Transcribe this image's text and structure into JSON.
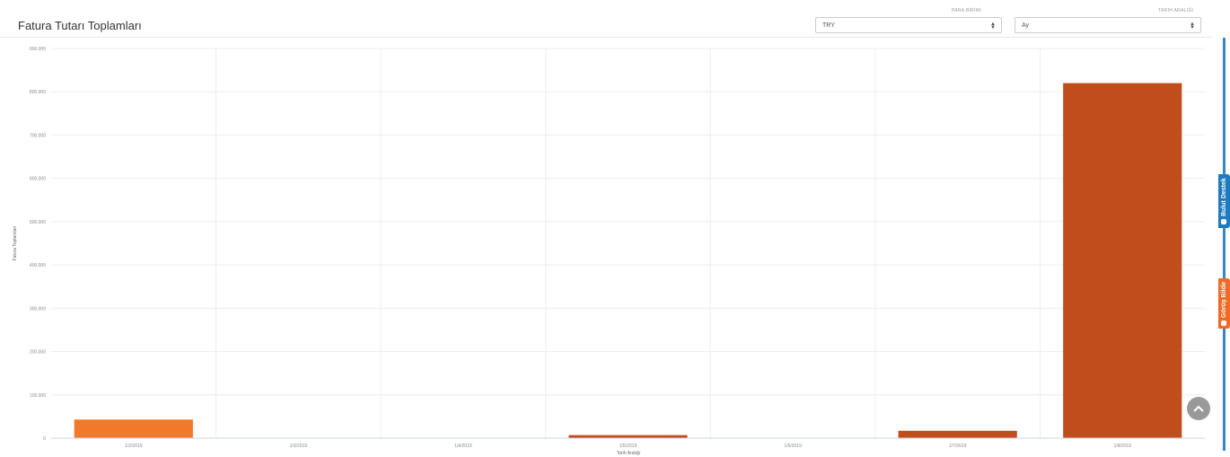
{
  "header": {
    "title": "Fatura Tutarı Toplamları",
    "currency_label": "PARA BİRİMİ",
    "currency_value": "TRY",
    "range_label": "TARİH ARALIĞI",
    "range_value": "Ay"
  },
  "side_tabs": {
    "support": "Bulut Destek",
    "feedback": "Görüş Bildir"
  },
  "chart_data": {
    "type": "bar",
    "categories": [
      "1/2/2019",
      "1/3/2019",
      "1/4/2019",
      "1/5/2019",
      "1/6/2019",
      "1/7/2019",
      "1/8/2019"
    ],
    "values": [
      43000,
      0,
      0,
      7000,
      0,
      17000,
      820000
    ],
    "colors": [
      "#f07a2a",
      "#c24d1c",
      "#c24d1c",
      "#c24d1c",
      "#c24d1c",
      "#c24d1c",
      "#c24d1c"
    ],
    "title": "",
    "xlabel": "Tarih Aralığı",
    "ylabel": "Fatura Toplamları",
    "ylim": [
      0,
      900000
    ],
    "yticks": [
      "0",
      "100.000",
      "200.000",
      "300.000",
      "400.000",
      "500.000",
      "600.000",
      "700.000",
      "800.000",
      "900.000"
    ],
    "grid": true,
    "legend": "none"
  }
}
